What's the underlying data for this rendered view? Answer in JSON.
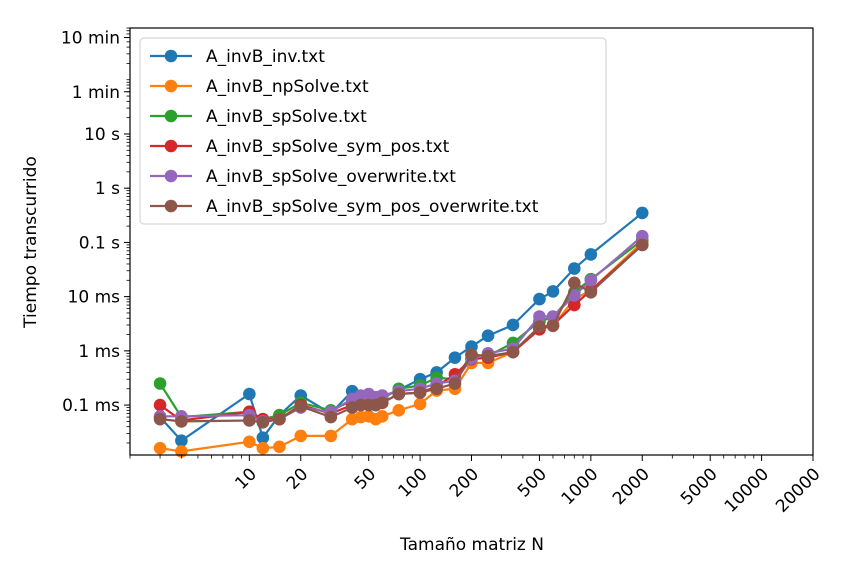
{
  "chart_data": {
    "type": "line",
    "xlabel": "Tamaño matriz N",
    "ylabel": "Tiempo transcurrido",
    "x_scale": "log",
    "y_scale": "log",
    "xlim": [
      2,
      20000
    ],
    "ylim_seconds": [
      1.2e-05,
      900
    ],
    "grid": false,
    "legend_position": "top-left",
    "x_ticks": [
      {
        "value": 10,
        "label": "10"
      },
      {
        "value": 20,
        "label": "20"
      },
      {
        "value": 50,
        "label": "50"
      },
      {
        "value": 100,
        "label": "100"
      },
      {
        "value": 200,
        "label": "200"
      },
      {
        "value": 500,
        "label": "500"
      },
      {
        "value": 1000,
        "label": "1000"
      },
      {
        "value": 2000,
        "label": "2000"
      },
      {
        "value": 5000,
        "label": "5000"
      },
      {
        "value": 10000,
        "label": "10000"
      },
      {
        "value": 20000,
        "label": "20000"
      }
    ],
    "y_ticks": [
      {
        "value": 0.0001,
        "label": "0.1 ms"
      },
      {
        "value": 0.001,
        "label": "1 ms"
      },
      {
        "value": 0.01,
        "label": "10 ms"
      },
      {
        "value": 0.1,
        "label": "0.1 s"
      },
      {
        "value": 1,
        "label": "1 s"
      },
      {
        "value": 10,
        "label": "10 s"
      },
      {
        "value": 60,
        "label": "1 min"
      },
      {
        "value": 600,
        "label": "10 min"
      }
    ],
    "x": [
      3,
      4,
      10,
      12,
      15,
      20,
      30,
      40,
      45,
      50,
      55,
      60,
      75,
      100,
      125,
      160,
      200,
      250,
      350,
      500,
      600,
      800,
      1000,
      2000
    ],
    "series": [
      {
        "name": "A_invB_inv.txt",
        "color": "#1f77b4",
        "values": [
          6e-05,
          2.2e-05,
          0.00016,
          2.5e-05,
          6.5e-05,
          0.00015,
          7e-05,
          0.00018,
          0.00013,
          0.00013,
          0.00012,
          0.00014,
          0.00019,
          0.0003,
          0.0004,
          0.00075,
          0.0012,
          0.0019,
          0.003,
          0.009,
          0.0125,
          0.033,
          0.06,
          0.35
        ]
      },
      {
        "name": "A_invB_npSolve.txt",
        "color": "#ff7f0e",
        "values": [
          1.6e-05,
          1.4e-05,
          2.1e-05,
          1.6e-05,
          1.7e-05,
          2.7e-05,
          2.7e-05,
          5.5e-05,
          6e-05,
          6.2e-05,
          5.5e-05,
          6.2e-05,
          8e-05,
          0.000105,
          0.000185,
          0.0002,
          0.0006,
          0.0006,
          0.00095,
          0.0025,
          0.0029,
          0.009,
          0.013,
          0.1
        ]
      },
      {
        "name": "A_invB_spSolve.txt",
        "color": "#2ca02c",
        "values": [
          0.00025,
          6e-05,
          7.5e-05,
          5.5e-05,
          6.5e-05,
          0.00011,
          8e-05,
          0.00012,
          0.00011,
          0.00012,
          0.00011,
          0.00013,
          0.0002,
          0.00023,
          0.00032,
          0.0003,
          0.00085,
          0.0008,
          0.0014,
          0.0035,
          0.0042,
          0.012,
          0.021,
          0.11
        ]
      },
      {
        "name": "A_invB_spSolve_sym_pos.txt",
        "color": "#d62728",
        "values": [
          0.0001,
          5.2e-05,
          7.5e-05,
          5.5e-05,
          5.5e-05,
          0.0001,
          7e-05,
          0.0001,
          0.00011,
          0.00011,
          0.0001,
          0.00011,
          0.00016,
          0.00017,
          0.00022,
          0.00037,
          0.0007,
          0.00075,
          0.00095,
          0.0025,
          0.003,
          0.007,
          0.013,
          0.09
        ]
      },
      {
        "name": "A_invB_spSolve_overwrite.txt",
        "color": "#9467bd",
        "values": [
          6.2e-05,
          6.2e-05,
          6.5e-05,
          5e-05,
          5.5e-05,
          9e-05,
          7.5e-05,
          0.00013,
          0.00015,
          0.00016,
          0.00014,
          0.00015,
          0.00018,
          0.0002,
          0.00025,
          0.00028,
          0.00072,
          0.0009,
          0.0011,
          0.0043,
          0.0043,
          0.0105,
          0.02,
          0.13
        ]
      },
      {
        "name": "A_invB_spSolve_sym_pos_overwrite.txt",
        "color": "#8c564b",
        "values": [
          5.5e-05,
          5e-05,
          5.2e-05,
          4.8e-05,
          5.5e-05,
          9.5e-05,
          6e-05,
          9e-05,
          0.0001,
          0.0001,
          0.0001,
          0.00011,
          0.00016,
          0.00017,
          0.0002,
          0.00025,
          0.00085,
          0.0008,
          0.00095,
          0.0028,
          0.0029,
          0.018,
          0.012,
          0.09
        ]
      }
    ]
  }
}
